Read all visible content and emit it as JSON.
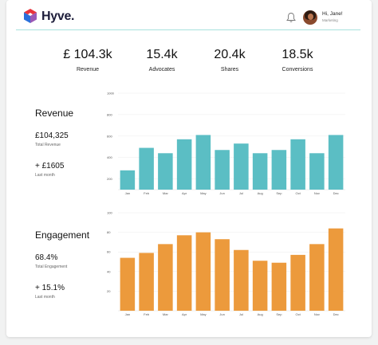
{
  "header": {
    "brand": "Hyve.",
    "greeting": "Hi, Jane!",
    "role": "Marketing"
  },
  "stats": [
    {
      "value": "£ 104.3k",
      "label": "Revenue"
    },
    {
      "value": "15.4k",
      "label": "Advocates"
    },
    {
      "value": "20.4k",
      "label": "Shares"
    },
    {
      "value": "18.5k",
      "label": "Conversions"
    }
  ],
  "revenue": {
    "title": "Revenue",
    "total_value": "£104,325",
    "total_label": "Total Revenue",
    "change_value": "+ £1605",
    "change_label": "Last month"
  },
  "engagement": {
    "title": "Engagement",
    "total_value": "68.4%",
    "total_label": "Total Engagement",
    "change_value": "+ 15.1%",
    "change_label": "Last month"
  },
  "colors": {
    "revenue_bar": "#5bbec4",
    "engagement_bar": "#ec9a3c",
    "divider": "#a8e1dd"
  },
  "chart_data": [
    {
      "type": "bar",
      "title": "",
      "categories": [
        "Jan",
        "Feb",
        "Mar",
        "Apr",
        "May",
        "Jun",
        "Jul",
        "Aug",
        "Sep",
        "Oct",
        "Nov",
        "Dec"
      ],
      "values": [
        280,
        490,
        440,
        570,
        610,
        470,
        530,
        440,
        470,
        570,
        440,
        610
      ],
      "yticks": [
        "200",
        "400",
        "600",
        "800",
        "1000"
      ],
      "ylim": [
        100,
        1000
      ],
      "grid": true
    },
    {
      "type": "bar",
      "title": "",
      "categories": [
        "Jan",
        "Feb",
        "Mar",
        "Apr",
        "May",
        "Jun",
        "Jul",
        "Aug",
        "Sep",
        "Oct",
        "Nov",
        "Dec"
      ],
      "values": [
        54,
        59,
        68,
        77,
        80,
        73,
        62,
        51,
        49,
        57,
        68,
        84
      ],
      "yticks": [
        "20",
        "40",
        "60",
        "80",
        "100"
      ],
      "ylim": [
        0,
        100
      ],
      "grid": true
    }
  ]
}
